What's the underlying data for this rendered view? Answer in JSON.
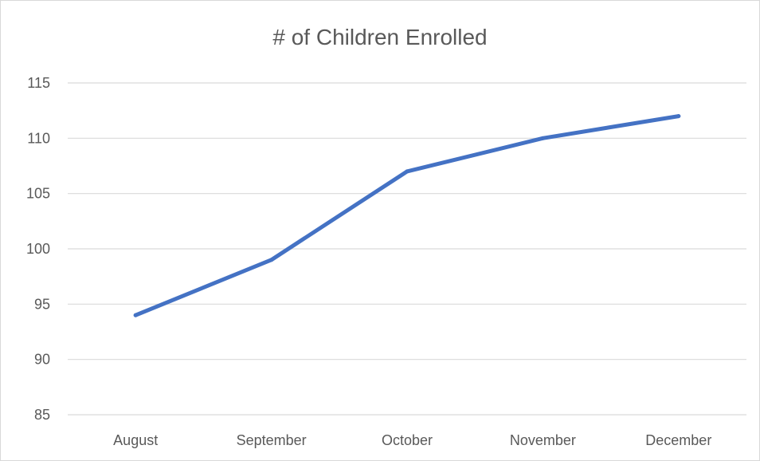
{
  "chart_data": {
    "type": "line",
    "title": "# of Children Enrolled",
    "categories": [
      "August",
      "September",
      "October",
      "November",
      "December"
    ],
    "series": [
      {
        "values": [
          94,
          99,
          107,
          110,
          112
        ],
        "color": "#4472c4"
      }
    ],
    "ylim": [
      85,
      115
    ],
    "yticks": [
      85,
      90,
      95,
      100,
      105,
      110,
      115
    ],
    "xlabel": "",
    "ylabel": "",
    "grid": true,
    "legend": "none",
    "colors": {
      "gridline": "#d9d9d9",
      "text": "#595959",
      "border": "#d9d9d9"
    }
  }
}
